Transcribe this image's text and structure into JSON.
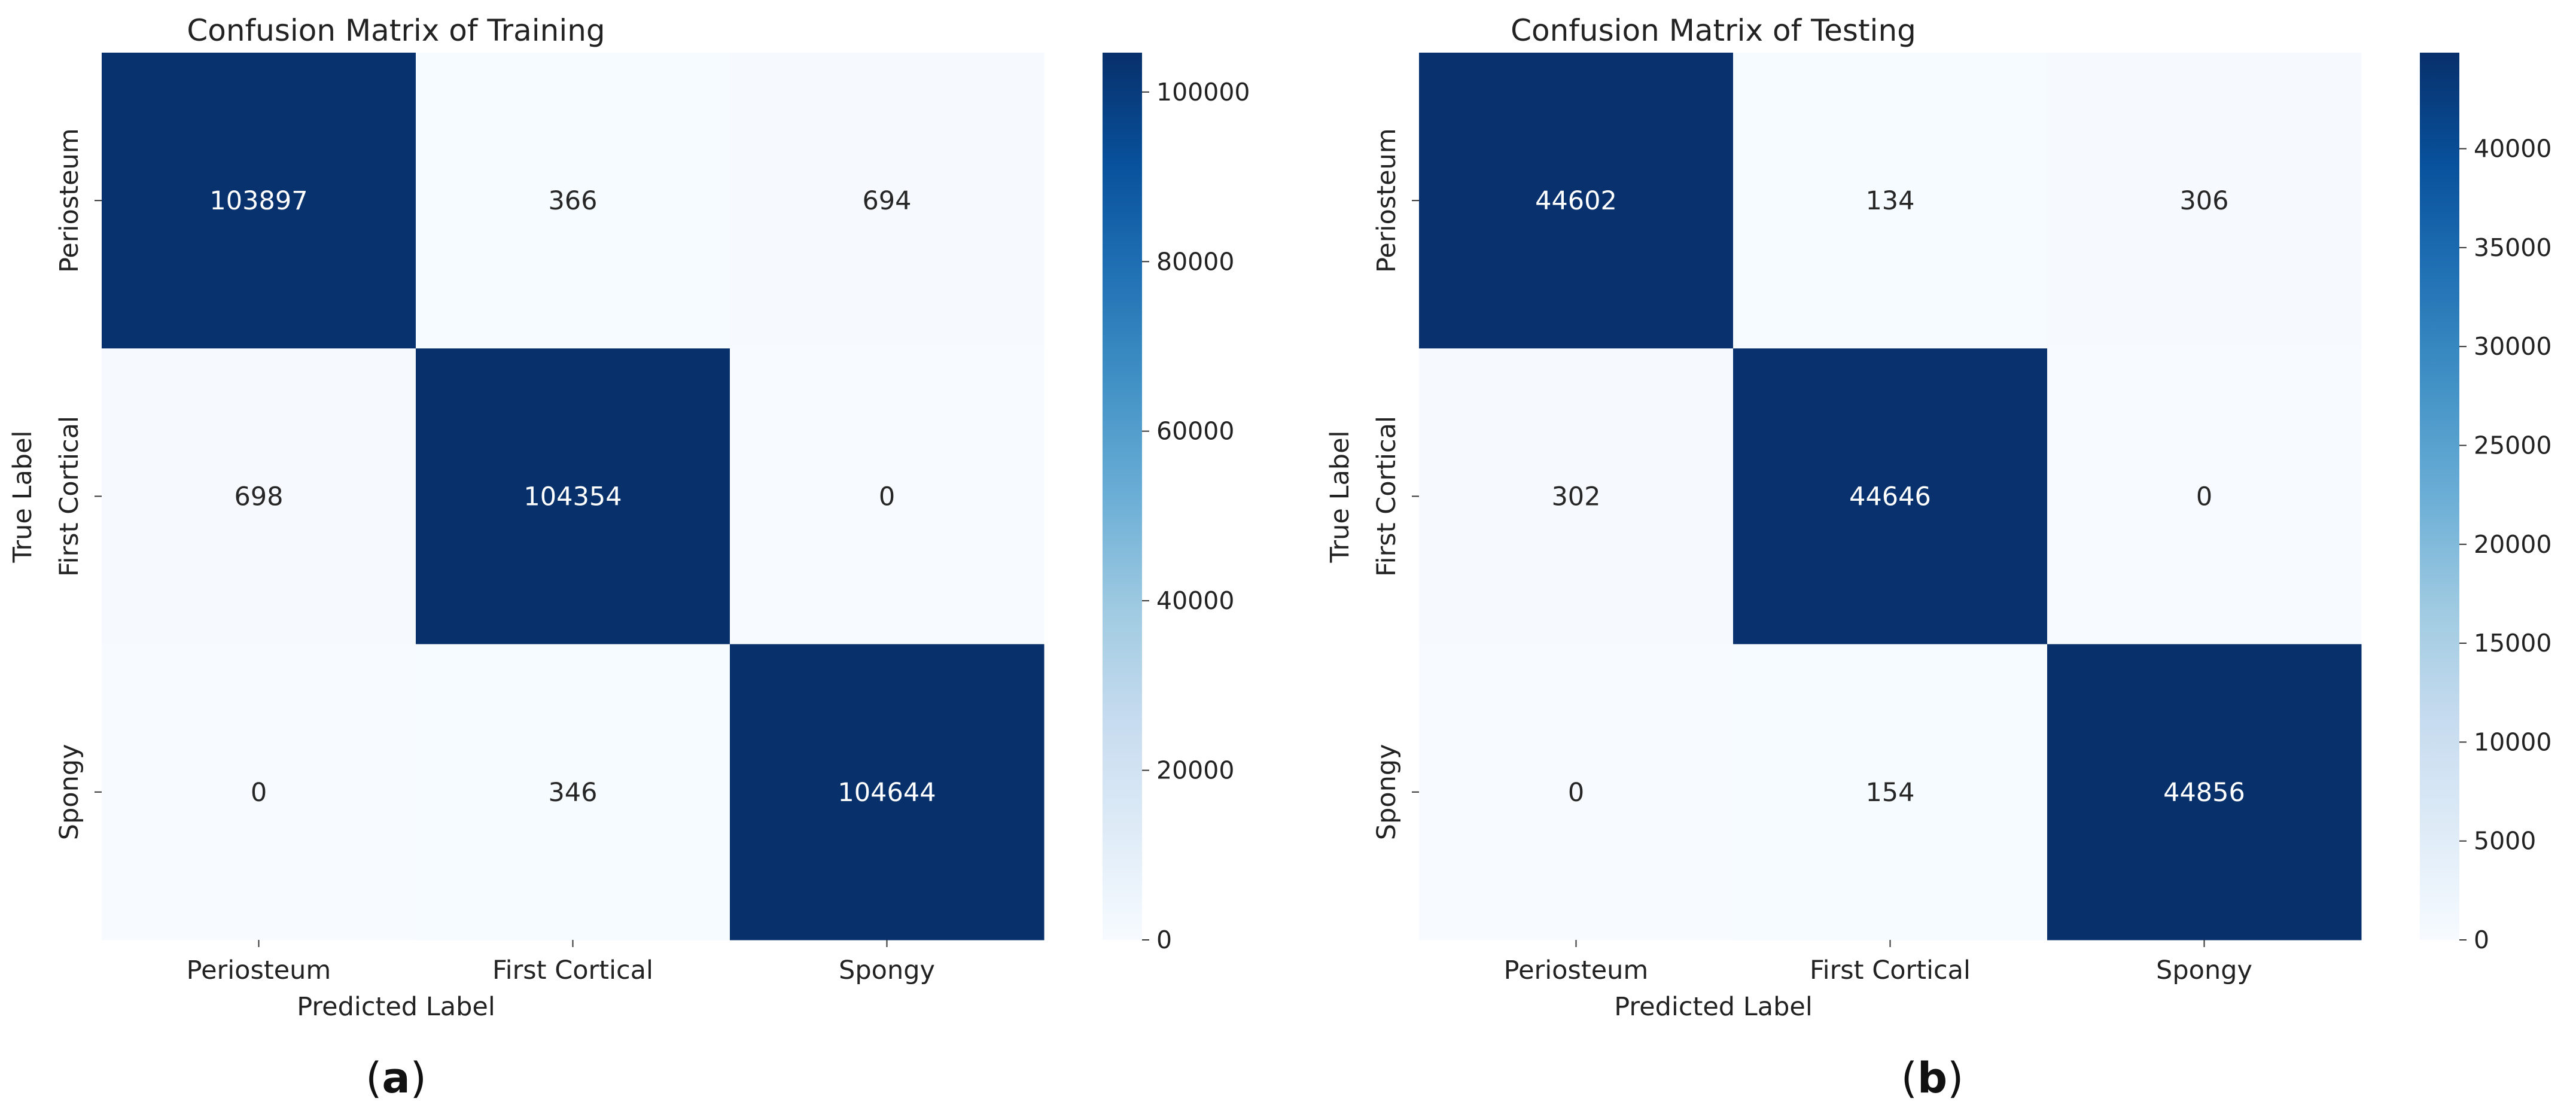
{
  "chart_data": [
    {
      "type": "heatmap",
      "title": "Confusion Matrix of Training",
      "xlabel": "Predicted Label",
      "ylabel": "True Label",
      "x_categories": [
        "Periosteum",
        "First Cortical",
        "Spongy"
      ],
      "y_categories": [
        "Periosteum",
        "First Cortical",
        "Spongy"
      ],
      "values": [
        [
          103897,
          366,
          694
        ],
        [
          698,
          104354,
          0
        ],
        [
          0,
          346,
          104644
        ]
      ],
      "colorbar": {
        "colormap": "Blues",
        "range": [
          0,
          104644
        ],
        "ticks": [
          0,
          20000,
          40000,
          60000,
          80000,
          100000
        ]
      },
      "caption": "a"
    },
    {
      "type": "heatmap",
      "title": "Confusion Matrix of Testing",
      "xlabel": "Predicted Label",
      "ylabel": "True Label",
      "x_categories": [
        "Periosteum",
        "First Cortical",
        "Spongy"
      ],
      "y_categories": [
        "Periosteum",
        "First Cortical",
        "Spongy"
      ],
      "values": [
        [
          44602,
          134,
          306
        ],
        [
          302,
          44646,
          0
        ],
        [
          0,
          154,
          44856
        ]
      ],
      "colorbar": {
        "colormap": "Blues",
        "range": [
          0,
          44856
        ],
        "ticks": [
          0,
          5000,
          10000,
          15000,
          20000,
          25000,
          30000,
          35000,
          40000
        ]
      },
      "caption": "b"
    }
  ]
}
